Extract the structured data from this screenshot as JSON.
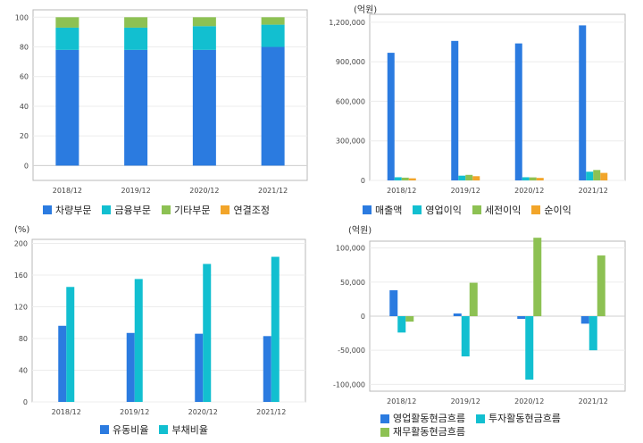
{
  "colors": [
    "#2b7be0",
    "#12bfd0",
    "#8dc153",
    "#f2a52a"
  ],
  "chart_data": [
    {
      "id": "top-left",
      "type": "bar",
      "stacked": true,
      "unit": "",
      "categories": [
        "2018/12",
        "2019/12",
        "2020/12",
        "2021/12"
      ],
      "series": [
        {
          "name": "차량부문",
          "values": [
            78,
            78,
            78,
            80
          ]
        },
        {
          "name": "금융부문",
          "values": [
            15,
            15,
            16,
            15
          ]
        },
        {
          "name": "기타부문",
          "values": [
            7,
            7,
            6,
            5
          ]
        },
        {
          "name": "연결조정",
          "values": [
            0,
            0,
            0,
            0
          ]
        }
      ],
      "ylim": [
        -10,
        105
      ],
      "yticks": [
        0,
        20,
        40,
        60,
        80,
        100
      ],
      "ytick_labels": [
        "0",
        "20",
        "40",
        "60",
        "80",
        "100"
      ]
    },
    {
      "id": "top-right",
      "type": "bar",
      "stacked": false,
      "unit": "(억원)",
      "categories": [
        "2018/12",
        "2019/12",
        "2020/12",
        "2021/12"
      ],
      "series": [
        {
          "name": "매출액",
          "values": [
            968000,
            1058000,
            1039000,
            1176000
          ]
        },
        {
          "name": "영업이익",
          "values": [
            24000,
            36000,
            24000,
            66000
          ]
        },
        {
          "name": "세전이익",
          "values": [
            21000,
            42000,
            23000,
            79000
          ]
        },
        {
          "name": "순이익",
          "values": [
            16000,
            32000,
            19000,
            57000
          ]
        }
      ],
      "ylim": [
        0,
        1260000
      ],
      "yticks": [
        0,
        300000,
        600000,
        900000,
        1200000
      ],
      "ytick_labels": [
        "0",
        "300,000",
        "600,000",
        "900,000",
        "1,200,000"
      ]
    },
    {
      "id": "bottom-left",
      "type": "bar",
      "stacked": false,
      "unit": "(%)",
      "categories": [
        "2018/12",
        "2019/12",
        "2020/12",
        "2021/12"
      ],
      "series": [
        {
          "name": "유동비율",
          "values": [
            96,
            87,
            86,
            83
          ]
        },
        {
          "name": "부채비율",
          "values": [
            145,
            155,
            174,
            183
          ]
        }
      ],
      "ylim": [
        0,
        205
      ],
      "yticks": [
        0,
        40,
        80,
        120,
        160,
        200
      ],
      "ytick_labels": [
        "0",
        "40",
        "80",
        "120",
        "160",
        "200"
      ]
    },
    {
      "id": "bottom-right",
      "type": "bar",
      "stacked": false,
      "unit": "(억원)",
      "categories": [
        "2018/12",
        "2019/12",
        "2020/12",
        "2021/12"
      ],
      "series": [
        {
          "name": "영업활동현금흐름",
          "values": [
            38000,
            4000,
            -4000,
            -11000
          ]
        },
        {
          "name": "투자활동현금흐름",
          "values": [
            -24000,
            -59000,
            -93000,
            -50000
          ]
        },
        {
          "name": "재무활동현금흐름",
          "values": [
            -8000,
            49000,
            115000,
            89000
          ]
        }
      ],
      "ylim": [
        -110000,
        110000
      ],
      "yticks": [
        -100000,
        -50000,
        0,
        50000,
        100000
      ],
      "ytick_labels": [
        "-100,000",
        "-50,000",
        "0",
        "50,000",
        "100,000"
      ]
    }
  ]
}
